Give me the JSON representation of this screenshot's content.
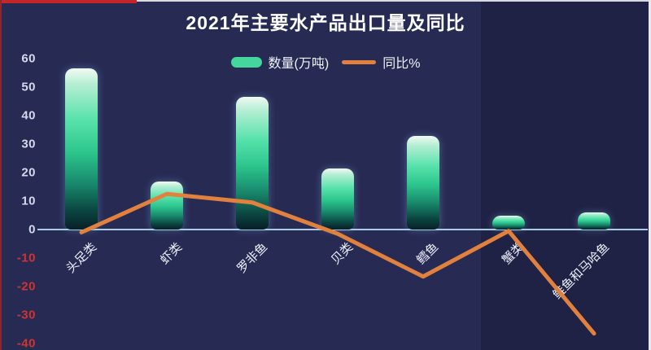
{
  "title": "2021年主要水产品出口量及同比",
  "legend": {
    "bar_label": "数量(万吨)",
    "line_label": "同比%"
  },
  "colors": {
    "background": "#272b54",
    "title_text": "#ffffff",
    "bar_fill_top": "#f2faf4",
    "bar_fill_mid": "#3ad694",
    "bar_fill_bottom": "#071f27",
    "line": "#e2813d",
    "axis_line": "#a9cbe3",
    "tick_positive": "#d6d8ee",
    "tick_negative": "#cf3430",
    "x_label_text": "#edeffa",
    "legend_bar_swatch": "#45d69d"
  },
  "chart_data": {
    "type": "bar+line combo",
    "title": "2021年主要水产品出口量及同比",
    "categories": [
      "头足类",
      "虾类",
      "罗非鱼",
      "贝类",
      "鳕鱼",
      "蟹类",
      "鲑鱼和马哈鱼"
    ],
    "series": [
      {
        "name": "数量(万吨)",
        "type": "bar",
        "values": [
          56.5,
          17,
          46.5,
          21.5,
          33,
          5,
          6
        ]
      },
      {
        "name": "同比%",
        "type": "line",
        "values": [
          -1,
          12.5,
          9.5,
          -1.5,
          -16.5,
          -0.5,
          -36.5
        ]
      }
    ],
    "yaxis": {
      "ticks": [
        60,
        50,
        40,
        30,
        20,
        10,
        0,
        -10,
        -20,
        -30,
        -40
      ],
      "range": [
        -43,
        63
      ]
    },
    "grid": false,
    "legend_position": "top-center",
    "x_label_rotation_deg": 45
  }
}
